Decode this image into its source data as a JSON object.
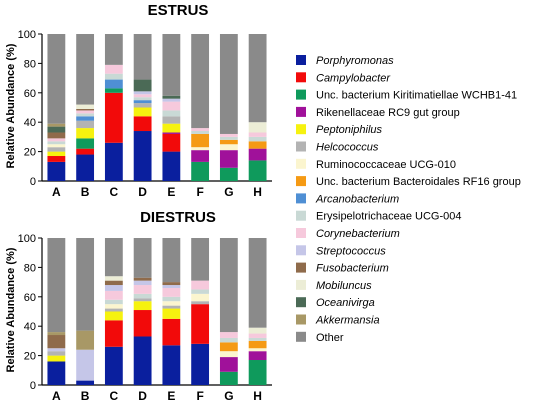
{
  "legend_order": [
    "Porphyromonas",
    "Campylobacter",
    "Unc. bacterium Kiritimatiellae WCHB1-41",
    "Rikenellaceae RC9 gut group",
    "Peptoniphilus",
    "Helcococcus",
    "Ruminococcaceae UCG-010",
    "Unc. bacterium Bacteroidales RF16 group",
    "Arcanobacterium",
    "Erysipelotrichaceae UCG-004",
    "Corynebacterium",
    "Streptococcus",
    "Fusobacterium",
    "Mobiluncus",
    "Oceanivirga",
    "Akkermansia",
    "Other"
  ],
  "taxa": [
    {
      "name": "Porphyromonas",
      "color": "#0a1f9e",
      "italic": true
    },
    {
      "name": "Campylobacter",
      "color": "#f20a0a",
      "italic": true
    },
    {
      "name": "Unc. bacterium Kiritimatiellae WCHB1-41",
      "color": "#0f9a5c",
      "italic": false
    },
    {
      "name": "Rikenellaceae RC9 gut group",
      "color": "#a0119a",
      "italic": false
    },
    {
      "name": "Peptoniphilus",
      "color": "#f6f20f",
      "italic": true
    },
    {
      "name": "Helcococcus",
      "color": "#b3b3b3",
      "italic": true
    },
    {
      "name": "Ruminococcaceae UCG-010",
      "color": "#fbf5cf",
      "italic": false
    },
    {
      "name": "Unc. bacterium Bacteroidales RF16 group",
      "color": "#f59a14",
      "italic": false
    },
    {
      "name": "Arcanobacterium",
      "color": "#4f8fd4",
      "italic": true
    },
    {
      "name": "Erysipelotrichaceae UCG-004",
      "color": "#c9d9d5",
      "italic": false
    },
    {
      "name": "Corynebacterium",
      "color": "#f6c9dc",
      "italic": true
    },
    {
      "name": "Streptococcus",
      "color": "#c5c6e8",
      "italic": true
    },
    {
      "name": "Fusobacterium",
      "color": "#8f6b4b",
      "italic": true
    },
    {
      "name": "Mobiluncus",
      "color": "#ecedd6",
      "italic": true
    },
    {
      "name": "Oceanivirga",
      "color": "#4b6a56",
      "italic": true
    },
    {
      "name": "Akkermansia",
      "color": "#a89866",
      "italic": true
    },
    {
      "name": "Other",
      "color": "#8a8a8a",
      "italic": false
    }
  ],
  "chart_data": [
    {
      "type": "bar",
      "stacked": true,
      "title": "ESTRUS",
      "ylabel": "Relative Abundance (%)",
      "xlabel": "",
      "categories": [
        "A",
        "B",
        "C",
        "D",
        "E",
        "F",
        "G",
        "H"
      ],
      "ylim": [
        0,
        100
      ],
      "yticks": [
        0,
        20,
        40,
        60,
        80,
        100
      ],
      "series": [
        {
          "name": "Porphyromonas",
          "values": [
            13,
            18,
            26,
            34,
            20,
            0,
            0,
            0
          ]
        },
        {
          "name": "Campylobacter",
          "values": [
            4,
            4,
            34,
            10,
            12,
            0,
            0,
            0
          ]
        },
        {
          "name": "Unc. bacterium Kiritimatiellae WCHB1-41",
          "values": [
            0,
            7,
            3,
            0,
            0,
            13,
            9,
            14
          ]
        },
        {
          "name": "Rikenellaceae RC9 gut group",
          "values": [
            0,
            0,
            0,
            0,
            1,
            8,
            12,
            8
          ]
        },
        {
          "name": "Peptoniphilus",
          "values": [
            3,
            7,
            0,
            6,
            6,
            0,
            0,
            0
          ]
        },
        {
          "name": "Helcococcus",
          "values": [
            3,
            5,
            0,
            3,
            5,
            0,
            0,
            0
          ]
        },
        {
          "name": "Ruminococcaceae UCG-010",
          "values": [
            2,
            0,
            0,
            0,
            0,
            2,
            4,
            0
          ]
        },
        {
          "name": "Unc. bacterium Bacteroidales RF16 group",
          "values": [
            0,
            0,
            0,
            0,
            0,
            9,
            3,
            5
          ]
        },
        {
          "name": "Arcanobacterium",
          "values": [
            0,
            3,
            6,
            2,
            0,
            0,
            0,
            0
          ]
        },
        {
          "name": "Erysipelotrichaceae UCG-004",
          "values": [
            2,
            2,
            4,
            2,
            4,
            2,
            2,
            3
          ]
        },
        {
          "name": "Corynebacterium",
          "values": [
            2,
            2,
            6,
            2,
            6,
            2,
            2,
            3
          ]
        },
        {
          "name": "Streptococcus",
          "values": [
            0,
            0,
            0,
            2,
            2,
            0,
            0,
            0
          ]
        },
        {
          "name": "Fusobacterium",
          "values": [
            4,
            1,
            0,
            0,
            0,
            0,
            0,
            0
          ]
        },
        {
          "name": "Mobiluncus",
          "values": [
            0,
            3,
            0,
            0,
            0,
            0,
            0,
            7
          ]
        },
        {
          "name": "Oceanivirga",
          "values": [
            4,
            0,
            0,
            8,
            2,
            0,
            0,
            0
          ]
        },
        {
          "name": "Akkermansia",
          "values": [
            2,
            0,
            0,
            0,
            0,
            0,
            0,
            0
          ]
        },
        {
          "name": "Other",
          "values": [
            61,
            48,
            21,
            31,
            42,
            64,
            68,
            60
          ]
        }
      ]
    },
    {
      "type": "bar",
      "stacked": true,
      "title": "DIESTRUS",
      "ylabel": "Relative Abundance (%)",
      "xlabel": "",
      "categories": [
        "A",
        "B",
        "C",
        "D",
        "E",
        "F",
        "G",
        "H"
      ],
      "ylim": [
        0,
        100
      ],
      "yticks": [
        0,
        20,
        40,
        60,
        80,
        100
      ],
      "series": [
        {
          "name": "Porphyromonas",
          "values": [
            16,
            3,
            26,
            33,
            27,
            28,
            0,
            0
          ]
        },
        {
          "name": "Campylobacter",
          "values": [
            0,
            0,
            18,
            18,
            18,
            27,
            0,
            0
          ]
        },
        {
          "name": "Unc. bacterium Kiritimatiellae WCHB1-41",
          "values": [
            0,
            0,
            0,
            0,
            0,
            0,
            9,
            17
          ]
        },
        {
          "name": "Rikenellaceae RC9 gut group",
          "values": [
            0,
            0,
            0,
            0,
            0,
            0,
            10,
            6
          ]
        },
        {
          "name": "Peptoniphilus",
          "values": [
            4,
            0,
            6,
            6,
            7,
            0,
            0,
            0
          ]
        },
        {
          "name": "Helcococcus",
          "values": [
            3,
            0,
            2,
            2,
            2,
            2,
            0,
            0
          ]
        },
        {
          "name": "Ruminococcaceae UCG-010",
          "values": [
            0,
            0,
            3,
            0,
            3,
            5,
            4,
            2
          ]
        },
        {
          "name": "Unc. bacterium Bacteroidales RF16 group",
          "values": [
            0,
            0,
            0,
            0,
            0,
            0,
            6,
            5
          ]
        },
        {
          "name": "Arcanobacterium",
          "values": [
            0,
            0,
            0,
            0,
            0,
            0,
            0,
            0
          ]
        },
        {
          "name": "Erysipelotrichaceae UCG-004",
          "values": [
            0,
            0,
            3,
            3,
            3,
            3,
            3,
            2
          ]
        },
        {
          "name": "Corynebacterium",
          "values": [
            0,
            0,
            6,
            6,
            6,
            6,
            4,
            3
          ]
        },
        {
          "name": "Streptococcus",
          "values": [
            2,
            21,
            4,
            3,
            2,
            0,
            0,
            0
          ]
        },
        {
          "name": "Fusobacterium",
          "values": [
            9,
            0,
            3,
            2,
            2,
            0,
            0,
            0
          ]
        },
        {
          "name": "Mobiluncus",
          "values": [
            0,
            0,
            3,
            0,
            0,
            0,
            0,
            4
          ]
        },
        {
          "name": "Oceanivirga",
          "values": [
            0,
            0,
            0,
            0,
            0,
            0,
            0,
            0
          ]
        },
        {
          "name": "Akkermansia",
          "values": [
            2,
            13,
            0,
            0,
            0,
            0,
            0,
            0
          ]
        },
        {
          "name": "Other",
          "values": [
            64,
            63,
            26,
            27,
            30,
            29,
            64,
            61
          ]
        }
      ]
    }
  ]
}
